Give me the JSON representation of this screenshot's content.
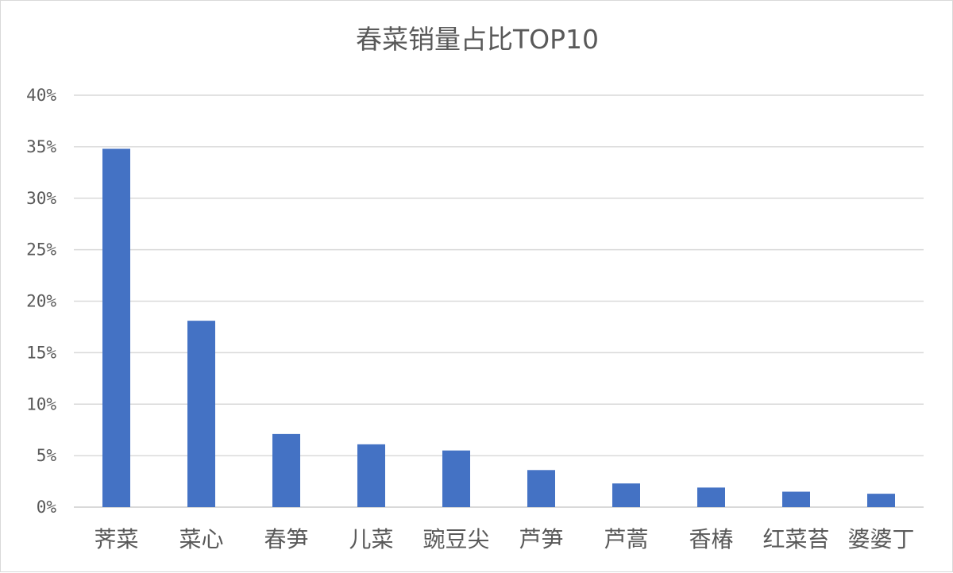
{
  "chart_data": {
    "type": "bar",
    "title": "春菜销量占比TOP10",
    "categories": [
      "荠菜",
      "菜心",
      "春笋",
      "儿菜",
      "豌豆尖",
      "芦笋",
      "芦蒿",
      "香椿",
      "红菜苔",
      "婆婆丁"
    ],
    "values": [
      0.348,
      0.181,
      0.071,
      0.061,
      0.055,
      0.036,
      0.023,
      0.019,
      0.015,
      0.013
    ],
    "y_ticks": [
      "0%",
      "5%",
      "10%",
      "15%",
      "20%",
      "25%",
      "30%",
      "35%",
      "40%"
    ],
    "ylim": [
      0,
      0.4
    ],
    "xlabel": "",
    "ylabel": "",
    "grid": true,
    "legend": "none",
    "bar_color": "#4472c4",
    "grid_color": "#d9d9d9"
  }
}
